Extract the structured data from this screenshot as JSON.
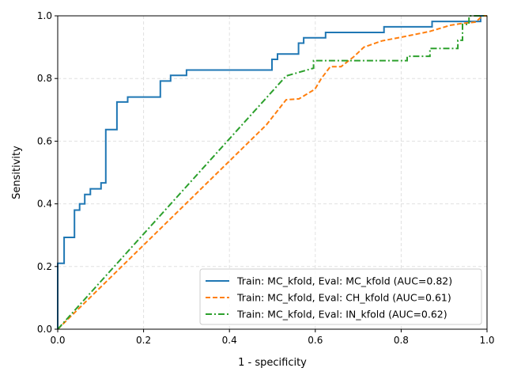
{
  "chart_data": {
    "type": "line",
    "title": "",
    "xlabel": "1 - specificity",
    "ylabel": "Sensitivity",
    "xlim": [
      0,
      1
    ],
    "ylim": [
      0,
      1
    ],
    "xticks": [
      "0.0",
      "0.2",
      "0.4",
      "0.6",
      "0.8",
      "1.0"
    ],
    "yticks": [
      "0.0",
      "0.2",
      "0.4",
      "0.6",
      "0.8",
      "1.0"
    ],
    "grid": true,
    "legend_position": "lower-right",
    "series": [
      {
        "name": "Train: MC_kfold, Eval: MC_kfold (AUC=0.82)",
        "color": "#1f77b4",
        "style": "solid",
        "x": [
          0,
          0,
          0.015,
          0.015,
          0.039,
          0.039,
          0.051,
          0.051,
          0.063,
          0.063,
          0.076,
          0.076,
          0.101,
          0.101,
          0.112,
          0.112,
          0.138,
          0.138,
          0.163,
          0.163,
          0.239,
          0.239,
          0.263,
          0.263,
          0.3,
          0.3,
          0.499,
          0.499,
          0.512,
          0.512,
          0.561,
          0.561,
          0.573,
          0.573,
          0.624,
          0.624,
          0.76,
          0.76,
          0.872,
          0.872,
          0.985,
          0.985,
          1.0
        ],
        "y": [
          0,
          0.21,
          0.21,
          0.293,
          0.293,
          0.38,
          0.38,
          0.4,
          0.4,
          0.43,
          0.43,
          0.448,
          0.448,
          0.467,
          0.467,
          0.637,
          0.637,
          0.725,
          0.725,
          0.741,
          0.741,
          0.792,
          0.792,
          0.81,
          0.81,
          0.827,
          0.827,
          0.861,
          0.861,
          0.878,
          0.878,
          0.913,
          0.913,
          0.93,
          0.93,
          0.947,
          0.947,
          0.965,
          0.965,
          0.982,
          0.982,
          1.0,
          1.0
        ]
      },
      {
        "name": "Train: MC_kfold, Eval: CH_kfold (AUC=0.61)",
        "color": "#ff7f0e",
        "style": "dashed",
        "x": [
          0,
          0.486,
          0.532,
          0.562,
          0.599,
          0.614,
          0.635,
          0.66,
          0.69,
          0.713,
          0.755,
          0.805,
          0.866,
          0.915,
          0.943,
          0.974,
          0.989,
          1.0
        ],
        "y": [
          0,
          0.652,
          0.732,
          0.735,
          0.766,
          0.8,
          0.838,
          0.838,
          0.87,
          0.9,
          0.92,
          0.933,
          0.95,
          0.97,
          0.976,
          0.98,
          1.0,
          1.0
        ]
      },
      {
        "name": "Train: MC_kfold, Eval: IN_kfold (AUC=0.62)",
        "color": "#2ca02c",
        "style": "dashdot",
        "x": [
          0,
          0.532,
          0.596,
          0.596,
          0.611,
          0.814,
          0.814,
          0.867,
          0.867,
          0.932,
          0.932,
          0.943,
          0.943,
          0.958,
          0.958,
          1.0
        ],
        "y": [
          0,
          0.808,
          0.833,
          0.857,
          0.857,
          0.857,
          0.871,
          0.871,
          0.896,
          0.896,
          0.922,
          0.922,
          0.973,
          0.973,
          1.0,
          1.0
        ]
      }
    ]
  }
}
